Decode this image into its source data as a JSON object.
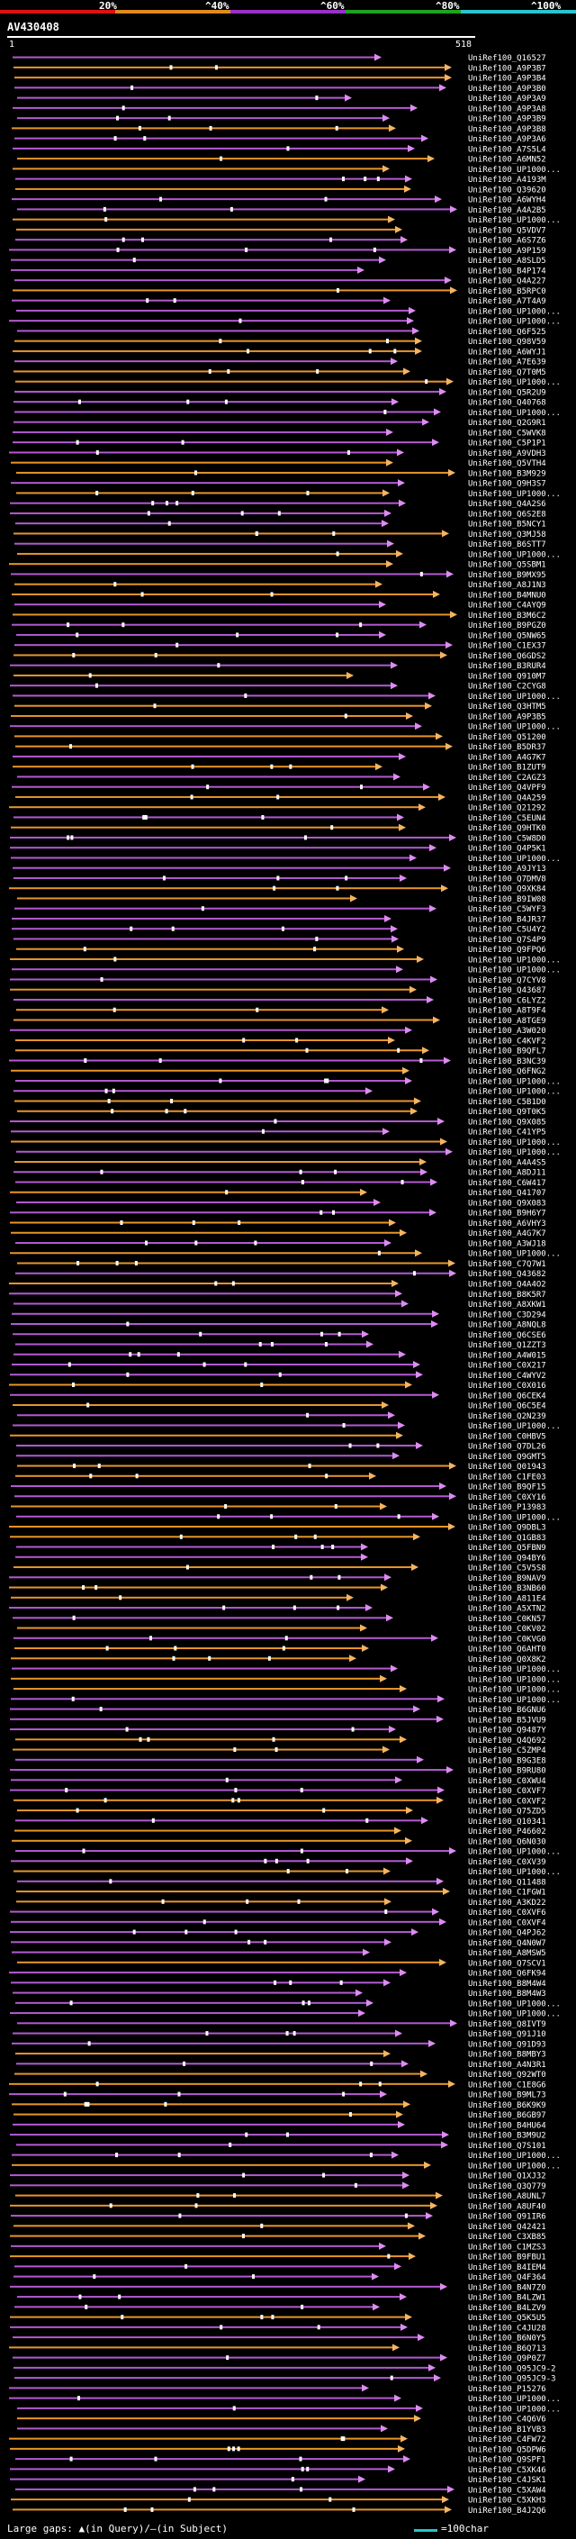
{
  "legend": {
    "labels": [
      "20%",
      "^40%",
      "^60%",
      "^80%",
      "^100%"
    ],
    "colors": [
      "#e01010",
      "#e08a1e",
      "#9b30c8",
      "#1fa31f",
      "#28c5d0"
    ]
  },
  "query": {
    "title": "AV430408",
    "start": "1",
    "end": "518"
  },
  "accent_colors": {
    "orange": "#e8952a",
    "purple": "#b35ad2",
    "arrow_orange": "#f5b461",
    "arrow_purple": "#dd8cf2"
  },
  "hits": [
    "UniRef100_Q16527",
    "UniRef100_A9P3B7",
    "UniRef100_A9P3B4",
    "UniRef100_A9P3B0",
    "UniRef100_A9P3A9",
    "UniRef100_A9P3A8",
    "UniRef100_A9P3B9",
    "UniRef100_A9P3B8",
    "UniRef100_A9P3A6",
    "UniRef100_A7S5L4",
    "UniRef100_A6MN52",
    "UniRef100_UP1000...",
    "UniRef100_A4193M",
    "UniRef100_Q39620",
    "UniRef100_A6WYH4",
    "UniRef100_A4A2B5",
    "UniRef100_UP1000...",
    "UniRef100_Q5VDV7",
    "UniRef100_A6S7Z6",
    "UniRef100_A9P159",
    "UniRef100_A8SLD5",
    "UniRef100_B4P174",
    "UniRef100_Q4A227",
    "UniRef100_B5RPC0",
    "UniRef100_A7T4A9",
    "UniRef100_UP1000...",
    "UniRef100_UP1000...",
    "UniRef100_Q6F525",
    "UniRef100_Q98V59",
    "UniRef100_A6WYJ1",
    "UniRef100_A7E639",
    "UniRef100_Q7T0M5",
    "UniRef100_UP1000...",
    "UniRef100_Q5R2U9",
    "UniRef100_Q40768",
    "UniRef100_UP1000...",
    "UniRef100_Q2G9R1",
    "UniRef100_C5WVK8",
    "UniRef100_C5P1P1",
    "UniRef100_A9VDH3",
    "UniRef100_Q5VTH4",
    "UniRef100_B3M929",
    "UniRef100_Q9H3S7",
    "UniRef100_UP1000...",
    "UniRef100_Q4A2S6",
    "UniRef100_Q6S2E8",
    "UniRef100_B5NCY1",
    "UniRef100_Q3MJ58",
    "UniRef100_B6STT7",
    "UniRef100_UP1000...",
    "UniRef100_Q5SBM1",
    "UniRef100_B9MX95",
    "UniRef100_A8J1N3",
    "UniRef100_B4MNU0",
    "UniRef100_C4AYQ9",
    "UniRef100_B3M6C2",
    "UniRef100_B9PGZ0",
    "UniRef100_Q5NW65",
    "UniRef100_C1EX37",
    "UniRef100_Q6GDS2",
    "UniRef100_B3RUR4",
    "UniRef100_Q910M7",
    "UniRef100_C2CYG8",
    "UniRef100_UP1000...",
    "UniRef100_Q3HTM5",
    "UniRef100_A9P3B5",
    "UniRef100_UP1000...",
    "UniRef100_Q51200",
    "UniRef100_B5DR37",
    "UniRef100_A4G7K7",
    "UniRef100_B1ZUT9",
    "UniRef100_C2AGZ3",
    "UniRef100_Q4VPF9",
    "UniRef100_Q4A259",
    "UniRef100_Q21292",
    "UniRef100_C5EUN4",
    "UniRef100_Q9HTK0",
    "UniRef100_C5W8D0",
    "UniRef100_Q4P5K1",
    "UniRef100_UP1000...",
    "UniRef100_A9JY13",
    "UniRef100_Q7DMV8",
    "UniRef100_Q9XK84",
    "UniRef100_B9IW08",
    "UniRef100_C5WYF3",
    "UniRef100_B4JR37",
    "UniRef100_C5U4Y2",
    "UniRef100_Q7S4P9",
    "UniRef100_Q9FPQ6",
    "UniRef100_UP1000...",
    "UniRef100_UP1000...",
    "UniRef100_Q7CYV8",
    "UniRef100_Q43687",
    "UniRef100_C6LYZ2",
    "UniRef100_A8T9F4",
    "UniRef100_A8TGE9",
    "UniRef100_A3W020",
    "UniRef100_C4KVF2",
    "UniRef100_B9QFL7",
    "UniRef100_B3NC39",
    "UniRef100_Q6FNG2",
    "UniRef100_UP1000...",
    "UniRef100_UP1000...",
    "UniRef100_C5B1D0",
    "UniRef100_Q9T0K5",
    "UniRef100_Q9X085",
    "UniRef100_C41YP5",
    "UniRef100_UP1000...",
    "UniRef100_UP1000...",
    "UniRef100_A4A4S5",
    "UniRef100_A8DJ11",
    "UniRef100_C6W417",
    "UniRef100_Q41707",
    "UniRef100_Q9X083",
    "UniRef100_B9H6Y7",
    "UniRef100_A6VHY3",
    "UniRef100_A4G7K7",
    "UniRef100_A3WJ18",
    "UniRef100_UP1000...",
    "UniRef100_C7Q7W1",
    "UniRef100_Q43682",
    "UniRef100_Q4A4O2",
    "UniRef100_B8K5R7",
    "UniRef100_A8XKW1",
    "UniRef100_C3D294",
    "UniRef100_A8NQL8",
    "UniRef100_Q6CSE6",
    "UniRef100_Q1ZZT3",
    "UniRef100_A4W015",
    "UniRef100_C0X217",
    "UniRef100_C4WYV2",
    "UniRef100_C0X016",
    "UniRef100_Q6CEK4",
    "UniRef100_Q6C5E4",
    "UniRef100_Q2N239",
    "UniRef100_UP1000...",
    "UniRef100_C0HBV5",
    "UniRef100_Q7DL26",
    "UniRef100_Q9GMT5",
    "UniRef100_Q01943",
    "UniRef100_C1FE03",
    "UniRef100_B9QF15",
    "UniRef100_C0XY16",
    "UniRef100_P13983",
    "UniRef100_UP1000...",
    "UniRef100_Q9DBL3",
    "UniRef100_Q1GB83",
    "UniRef100_Q5FBN9",
    "UniRef100_Q94BY6",
    "UniRef100_C5V5S8",
    "UniRef100_B9NAV9",
    "UniRef100_B3NB60",
    "UniRef100_A811E4",
    "UniRef100_A5XTN2",
    "UniRef100_C0KN57",
    "UniRef100_C0KV02",
    "UniRef100_C0KVG0",
    "UniRef100_Q6AHT0",
    "UniRef100_Q0X8K2",
    "UniRef100_UP1000...",
    "UniRef100_UP1000...",
    "UniRef100_UP1000...",
    "UniRef100_UP1000...",
    "UniRef100_B6GNU6",
    "UniRef100_B5JVU9",
    "UniRef100_Q9487Y",
    "UniRef100_Q4Q692",
    "UniRef100_C5ZMP4",
    "UniRef100_B9G3E8",
    "UniRef100_B9RU80",
    "UniRef100_C0XWU4",
    "UniRef100_C0XVF7",
    "UniRef100_C0XVF2",
    "UniRef100_Q75ZD5",
    "UniRef100_Q10341",
    "UniRef100_P46602",
    "UniRef100_Q6N030",
    "UniRef100_UP1000...",
    "UniRef100_C0XV39",
    "UniRef100_UP1000...",
    "UniRef100_Q11488",
    "UniRef100_C1FGW1",
    "UniRef100_A3KD22",
    "UniRef100_C0XVF6",
    "UniRef100_C0XVF4",
    "UniRef100_Q4PJ62",
    "UniRef100_Q4N0W7",
    "UniRef100_A8MSW5",
    "UniRef100_Q7SCV1",
    "UniRef100_Q6FK94",
    "UniRef100_B8M4W4",
    "UniRef100_B8M4W3",
    "UniRef100_UP1000...",
    "UniRef100_UP1000...",
    "UniRef100_Q8IVT9",
    "UniRef100_Q91J10",
    "UniRef100_Q91D93",
    "UniRef100_B8MBY3",
    "UniRef100_A4N3R1",
    "UniRef100_Q92WT0",
    "UniRef100_C1E8G6",
    "UniRef100_B9ML73",
    "UniRef100_B6K9K9",
    "UniRef100_B6GB97",
    "UniRef100_B4HU64",
    "UniRef100_B3M9U2",
    "UniRef100_Q7S101",
    "UniRef100_UP1000...",
    "UniRef100_UP1000...",
    "UniRef100_Q1XJ32",
    "UniRef100_Q3Q779",
    "UniRef100_A8UNL7",
    "UniRef100_A8UF40",
    "UniRef100_Q91IR6",
    "UniRef100_Q42421",
    "UniRef100_C3XB85",
    "UniRef100_C1MZS3",
    "UniRef100_B9FBU1",
    "UniRef100_B4IEM4",
    "UniRef100_Q4F364",
    "UniRef100_B4N7Z0",
    "UniRef100_B4LZW1",
    "UniRef100_B4LZV9",
    "UniRef100_Q5K5U5",
    "UniRef100_C4JU28",
    "UniRef100_B6N0Y5",
    "UniRef100_B6Q713",
    "UniRef100_Q9P0Z7",
    "UniRef100_Q95JC9-2",
    "UniRef100_Q95JC9-3",
    "UniRef100_P15276",
    "UniRef100_UP1000...",
    "UniRef100_UP1000...",
    "UniRef100_C4Q6V6",
    "UniRef100_B1YVB3",
    "UniRef100_C4FW72",
    "UniRef100_Q5DPW6",
    "UniRef100_Q9SPF1",
    "UniRef100_C5XK46",
    "UniRef100_C4JSK1",
    "UniRef100_C5XAW4",
    "UniRef100_C5XKH3",
    "UniRef100_B4J2Q6"
  ],
  "footer": {
    "large_gaps_label": "Large gaps: ▲(in Query)/–(in Subject)",
    "scale_label": "=100char"
  }
}
